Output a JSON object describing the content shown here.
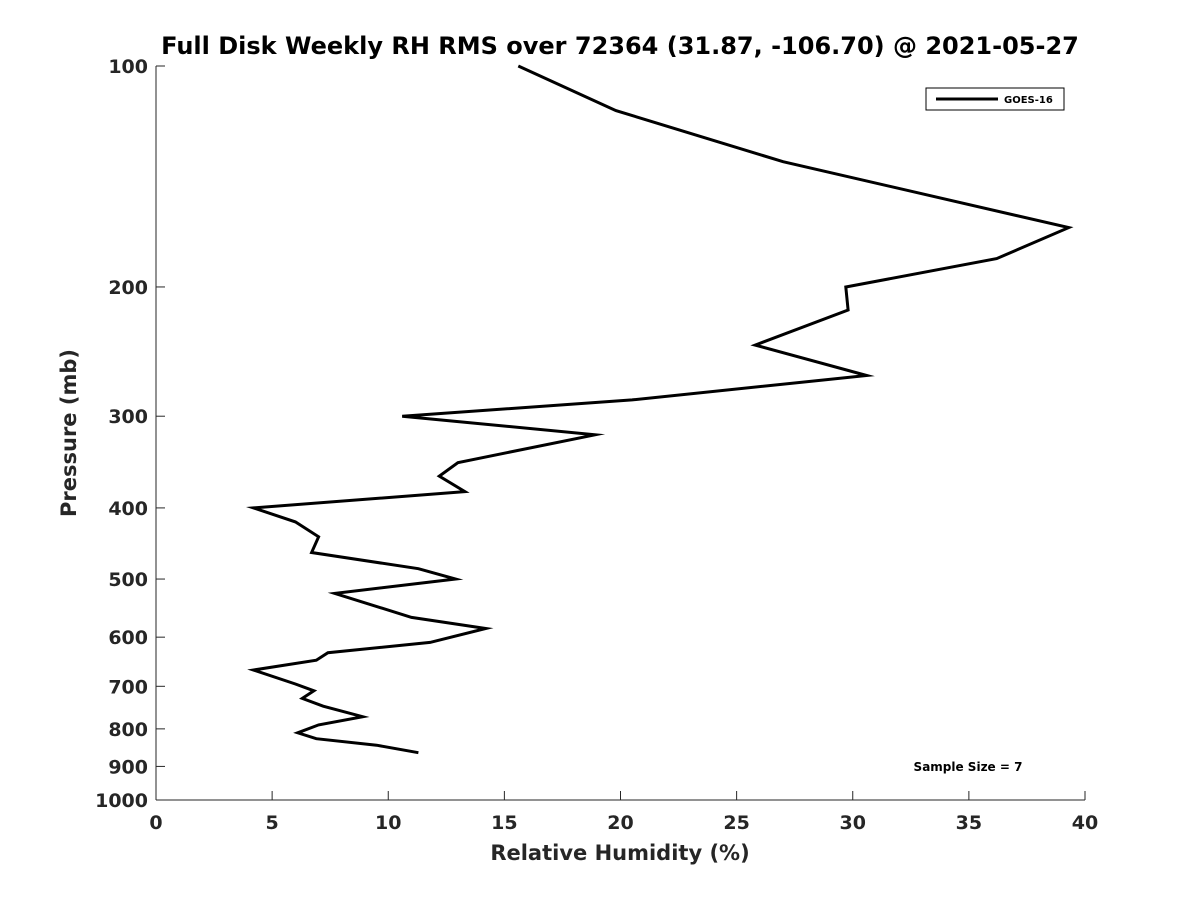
{
  "chart_data": {
    "type": "line",
    "title": "Full Disk Weekly RH RMS over 72364 (31.87, -106.70) @ 2021-05-27",
    "xlabel": "Relative Humidity (%)",
    "ylabel": "Pressure (mb)",
    "xlim": [
      0,
      40
    ],
    "ylim": [
      100,
      1000
    ],
    "y_scale": "log",
    "y_reversed": true,
    "xticks": [
      0,
      5,
      10,
      15,
      20,
      25,
      30,
      35,
      40
    ],
    "yticks": [
      100,
      200,
      300,
      400,
      500,
      600,
      700,
      800,
      900,
      1000
    ],
    "grid": false,
    "legend_position": "top-right",
    "annotation": "Sample Size = 7",
    "series": [
      {
        "name": "GOES-16",
        "color": "#000000",
        "x": [
          15.6,
          19.8,
          27.0,
          39.3,
          36.2,
          29.7,
          29.8,
          25.8,
          30.6,
          20.5,
          10.6,
          18.9,
          13.0,
          12.2,
          13.3,
          4.2,
          6.0,
          7.0,
          6.7,
          11.3,
          12.9,
          7.7,
          11.0,
          14.2,
          11.8,
          7.4,
          6.9,
          4.2,
          6.0,
          6.8,
          6.3,
          7.2,
          8.9,
          7.0,
          6.1,
          6.9,
          9.5,
          11.3
        ],
        "y": [
          100,
          115,
          135,
          166,
          183,
          200,
          215,
          240,
          264,
          285,
          300,
          318,
          347,
          362,
          380,
          400,
          418,
          438,
          460,
          484,
          500,
          523,
          564,
          584,
          610,
          630,
          645,
          665,
          695,
          710,
          727,
          745,
          770,
          790,
          810,
          825,
          842,
          862
        ]
      }
    ]
  }
}
